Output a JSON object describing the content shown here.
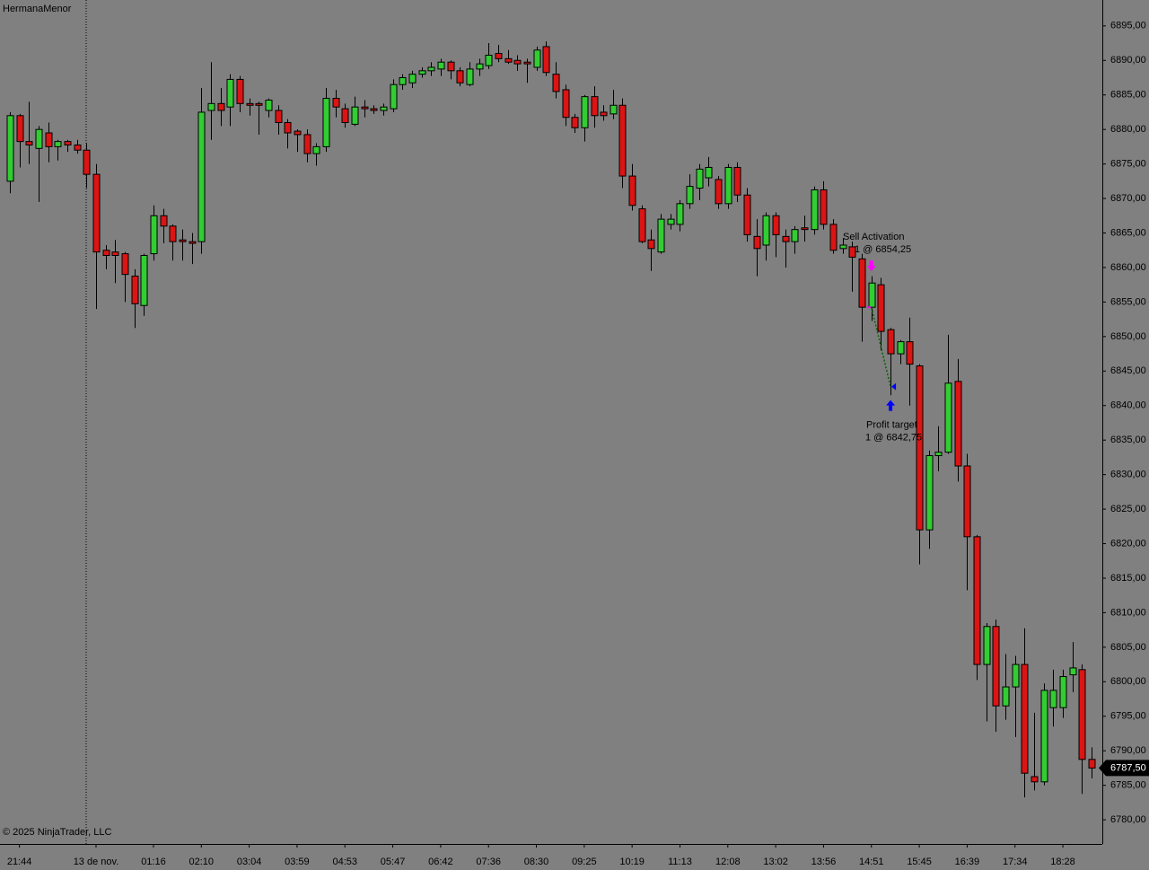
{
  "chart_data": {
    "type": "candlestick",
    "instrument": "HermanaMenor",
    "copyright": "© 2025 NinjaTrader, LLC",
    "categories": [
      null,
      "21:44",
      null,
      null,
      null,
      null,
      null,
      null,
      null,
      "13 de nov.",
      null,
      null,
      null,
      null,
      null,
      "01:16",
      null,
      null,
      null,
      null,
      "02:10",
      null,
      null,
      null,
      null,
      "03:04",
      null,
      null,
      null,
      null,
      "03:59",
      null,
      null,
      null,
      null,
      "04:53",
      null,
      null,
      null,
      null,
      "05:47",
      null,
      null,
      null,
      null,
      "06:42",
      null,
      null,
      null,
      null,
      "07:36",
      null,
      null,
      null,
      null,
      "08:30",
      null,
      null,
      null,
      null,
      "09:25",
      null,
      null,
      null,
      null,
      "10:19",
      null,
      null,
      null,
      null,
      "11:13",
      null,
      null,
      null,
      null,
      "12:08",
      null,
      null,
      null,
      null,
      "13:02",
      null,
      null,
      null,
      null,
      "13:56",
      null,
      null,
      null,
      null,
      "14:51",
      null,
      null,
      null,
      null,
      "15:45",
      null,
      null,
      null,
      null,
      "16:39",
      null,
      null,
      null,
      null,
      "17:34",
      null,
      null,
      null,
      null,
      "18:28",
      null,
      null,
      null
    ],
    "up_color": "#32cd32",
    "down_color": "#dc1414",
    "series": [
      {
        "open": [
          6872.5,
          6882,
          6878.25,
          6877.25,
          6879.5,
          6877.5,
          6878.25,
          6877.75,
          6877,
          6873.5,
          6862.5,
          6862.25,
          6862,
          6858.75,
          6854.5,
          6862,
          6867.5,
          6866,
          6864,
          6863.75,
          6863.75,
          6882.75,
          6883.75,
          6883.25,
          6887.25,
          6883.75,
          6883.75,
          6882.75,
          6882.75,
          6881,
          6879.75,
          6879.25,
          6876.5,
          6877.5,
          6884.5,
          6883,
          6880.75,
          6883.25,
          6883,
          6882.75,
          6883,
          6886.5,
          6886.75,
          6888,
          6888.5,
          6888.75,
          6889.75,
          6888.5,
          6886.5,
          6888.75,
          6889.25,
          6891,
          6890.25,
          6890,
          6889.75,
          6889,
          6892,
          6888,
          6885.75,
          6881.75,
          6880.25,
          6884.75,
          6882.5,
          6882.25,
          6883.5,
          6873.25,
          6868.5,
          6864,
          6862.25,
          6866.25,
          6866.25,
          6869.25,
          6871.5,
          6873,
          6872.75,
          6869.25,
          6874.5,
          6870.5,
          6864.5,
          6863.25,
          6867.5,
          6864.5,
          6863.75,
          6865.75,
          6865.5,
          6871.25,
          6866.25,
          6862.75,
          6863,
          6861.25,
          6854.25,
          6857.5,
          6851,
          6847.5,
          6849.25,
          6845.75,
          6822,
          6832.75,
          6833.25,
          6843.5,
          6831.25,
          6821,
          6802.5,
          6808,
          6796.5,
          6799.25,
          6802.5,
          6786.25,
          6785.5,
          6796.25,
          6796.25,
          6801,
          6801.75,
          6788.75
        ],
        "high": [
          6882.5,
          6882.25,
          6884,
          6880.5,
          6881,
          6878.5,
          6878.5,
          6878.5,
          6878,
          6875,
          6863.25,
          6864,
          6862.25,
          6859.75,
          6862,
          6869,
          6868.5,
          6866.25,
          6865.5,
          6865,
          6886,
          6889.75,
          6886,
          6888,
          6887.75,
          6884.5,
          6884,
          6884.5,
          6883.5,
          6881.5,
          6880,
          6880,
          6878,
          6886,
          6885.75,
          6883.75,
          6884.75,
          6884.25,
          6883.5,
          6883.75,
          6887.25,
          6888,
          6888.5,
          6889,
          6889.75,
          6890.25,
          6890,
          6889,
          6889.75,
          6890.25,
          6892.5,
          6892.25,
          6891.5,
          6890.75,
          6890.25,
          6892,
          6892.75,
          6889.75,
          6886.5,
          6882.25,
          6885,
          6886.25,
          6883.5,
          6885.75,
          6884.5,
          6875,
          6869,
          6865.5,
          6867.75,
          6867.75,
          6869.75,
          6873.5,
          6875,
          6876,
          6873.25,
          6875,
          6875.25,
          6871.5,
          6867,
          6868,
          6868,
          6865.5,
          6866,
          6867.5,
          6871.75,
          6872.5,
          6867,
          6864.25,
          6863.75,
          6862,
          6858.75,
          6858.5,
          6851.25,
          6849.5,
          6852.75,
          6846,
          6833.5,
          6837,
          6850.25,
          6846.75,
          6833,
          6821.25,
          6808.5,
          6809,
          6804,
          6803.75,
          6807.75,
          6795.5,
          6799.75,
          6801.75,
          6801.75,
          6805.75,
          6802.5,
          6790.5
        ],
        "low": [
          6870.75,
          6874.5,
          6875,
          6869.5,
          6875.25,
          6875.5,
          6876.75,
          6876.5,
          6871.5,
          6854,
          6859.75,
          6857.75,
          6855,
          6851.25,
          6853,
          6861,
          6863.5,
          6861,
          6861,
          6860.5,
          6862,
          6878.5,
          6880.5,
          6880.5,
          6882.5,
          6882,
          6879.25,
          6881.75,
          6879.25,
          6877.25,
          6876.75,
          6875.25,
          6874.75,
          6876.75,
          6881.75,
          6880.25,
          6880.5,
          6881.75,
          6882.25,
          6882,
          6882.5,
          6885.75,
          6886,
          6887.5,
          6887.75,
          6887.75,
          6887.25,
          6886.25,
          6886.25,
          6887.75,
          6888.75,
          6889.75,
          6889.5,
          6888.5,
          6886.75,
          6888.5,
          6887.75,
          6884.5,
          6880.5,
          6879.5,
          6878.25,
          6880.25,
          6881.25,
          6881.5,
          6871.5,
          6868.25,
          6863.5,
          6859.5,
          6862,
          6865.5,
          6865.25,
          6868.5,
          6869.75,
          6871.75,
          6868.5,
          6868.5,
          6869.5,
          6863.75,
          6858.75,
          6861,
          6861.5,
          6860,
          6862,
          6863.75,
          6864.75,
          6865.5,
          6862,
          6862,
          6856.5,
          6849.25,
          6852.25,
          6848,
          6841.5,
          6846,
          6840,
          6817,
          6819.25,
          6830.5,
          6833,
          6829,
          6813.25,
          6800.25,
          6794.25,
          6792.75,
          6794.5,
          6792,
          6783.25,
          6784.25,
          6785,
          6793.5,
          6794.75,
          6798.5,
          6783.75,
          6786
        ],
        "close": [
          6882,
          6878.25,
          6877.75,
          6880,
          6877.5,
          6878.25,
          6877.75,
          6877,
          6873.5,
          6862.25,
          6861.75,
          6861.75,
          6859,
          6854.75,
          6861.75,
          6867.5,
          6866,
          6863.75,
          6863.75,
          6863.5,
          6882.5,
          6883.75,
          6882.75,
          6887.25,
          6883.75,
          6883.5,
          6883.5,
          6884.25,
          6881,
          6879.5,
          6879.25,
          6876.5,
          6877.5,
          6884.5,
          6883.25,
          6881,
          6883.25,
          6883,
          6882.75,
          6883.25,
          6886.5,
          6887.5,
          6888,
          6888.5,
          6889,
          6889.75,
          6888.5,
          6886.75,
          6888.75,
          6889.5,
          6890.75,
          6890.25,
          6889.75,
          6889.5,
          6889.5,
          6891.5,
          6888.25,
          6885.5,
          6881.75,
          6880.25,
          6884.75,
          6882,
          6882,
          6883.5,
          6873.25,
          6869,
          6863.75,
          6862.75,
          6867,
          6867,
          6869.25,
          6871.75,
          6874.25,
          6874.5,
          6869.25,
          6874.5,
          6870.5,
          6864.75,
          6862.75,
          6867.5,
          6864.75,
          6863.75,
          6865.5,
          6865.5,
          6871.25,
          6866.25,
          6862.5,
          6863.25,
          6861.5,
          6854.25,
          6857.75,
          6850.75,
          6847.5,
          6849.25,
          6846,
          6822,
          6832.75,
          6833.25,
          6843.25,
          6831.25,
          6821,
          6802.5,
          6808,
          6796.5,
          6799.25,
          6802.5,
          6786.75,
          6785.5,
          6798.75,
          6798.75,
          6800.75,
          6802,
          6788.75,
          6787.5
        ]
      }
    ],
    "ylim": [
      6776.5,
      6898.75
    ],
    "yticks": [
      {
        "value": 6895,
        "label": "6895,00"
      },
      {
        "value": 6890,
        "label": "6890,00"
      },
      {
        "value": 6885,
        "label": "6885,00"
      },
      {
        "value": 6880,
        "label": "6880,00"
      },
      {
        "value": 6875,
        "label": "6875,00"
      },
      {
        "value": 6870,
        "label": "6870,00"
      },
      {
        "value": 6865,
        "label": "6865,00"
      },
      {
        "value": 6860,
        "label": "6860,00"
      },
      {
        "value": 6855,
        "label": "6855,00"
      },
      {
        "value": 6850,
        "label": "6850,00"
      },
      {
        "value": 6845,
        "label": "6845,00"
      },
      {
        "value": 6840,
        "label": "6840,00"
      },
      {
        "value": 6835,
        "label": "6835,00"
      },
      {
        "value": 6830,
        "label": "6830,00"
      },
      {
        "value": 6825,
        "label": "6825,00"
      },
      {
        "value": 6820,
        "label": "6820,00"
      },
      {
        "value": 6815,
        "label": "6815,00"
      },
      {
        "value": 6810,
        "label": "6810,00"
      },
      {
        "value": 6805,
        "label": "6805,00"
      },
      {
        "value": 6800,
        "label": "6800,00"
      },
      {
        "value": 6795,
        "label": "6795,00"
      },
      {
        "value": 6790,
        "label": "6790,00"
      },
      {
        "value": 6785,
        "label": "6785,00"
      },
      {
        "value": 6780,
        "label": "6780,00"
      }
    ],
    "last_price": {
      "value": 6787.5,
      "label": "6787,50"
    },
    "trade": {
      "entry_label": "Sell Activation",
      "entry_detail": "1 @ 6854,25",
      "entry_price": 6854.25,
      "entry_color": "#ff00ff",
      "exit_label": "Profit target",
      "exit_detail": "1 @ 6842,75",
      "exit_price": 6842.75,
      "exit_color": "#0000ff",
      "link_color": "#006400"
    }
  }
}
